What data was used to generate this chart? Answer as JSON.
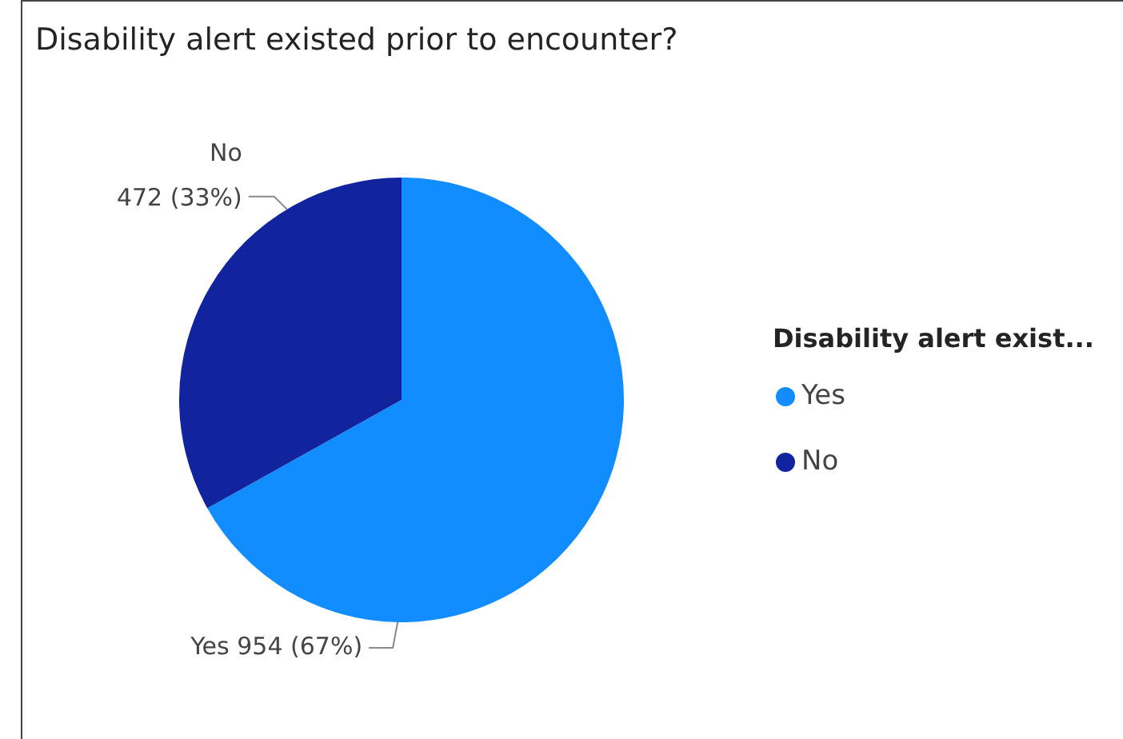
{
  "chart_data": {
    "type": "pie",
    "title": "Disability alert existed prior to encounter?",
    "legend_title": "Disability alert exist...",
    "legend": "right",
    "categories": [
      "Yes",
      "No"
    ],
    "values": [
      954,
      472
    ],
    "colors": [
      "#118dff",
      "#12239e"
    ],
    "value_labels": [
      "954 (67%)",
      "472 (33%)"
    ]
  }
}
